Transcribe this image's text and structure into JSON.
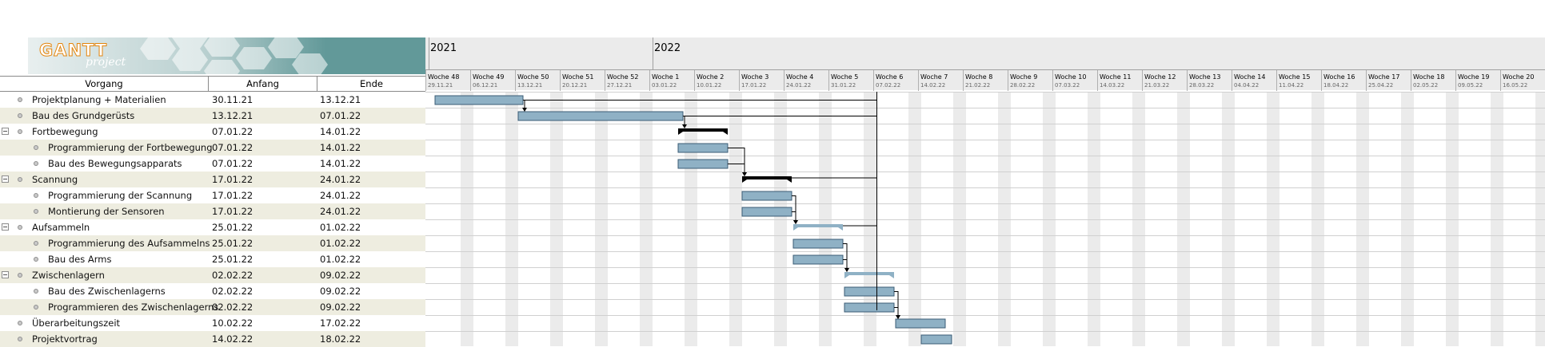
{
  "logo": {
    "brand": "GANTT",
    "sub": "project"
  },
  "table": {
    "columns": {
      "name": "Vorgang",
      "start": "Anfang",
      "end": "Ende"
    }
  },
  "tasks": [
    {
      "name": "Projektplanung + Materialien",
      "start": "30.11.21",
      "end": "13.12.21",
      "level": 0,
      "group": false,
      "startDay": 0,
      "durDays": 14,
      "type": "task"
    },
    {
      "name": "Bau des Grundgerüsts",
      "start": "13.12.21",
      "end": "07.01.22",
      "level": 0,
      "group": false,
      "startDay": 13,
      "durDays": 26,
      "type": "task"
    },
    {
      "name": "Fortbewegung",
      "start": "07.01.22",
      "end": "14.01.22",
      "level": 0,
      "group": true,
      "startDay": 38,
      "durDays": 8,
      "type": "summary-dark"
    },
    {
      "name": "Programmierung der Fortbewegung",
      "start": "07.01.22",
      "end": "14.01.22",
      "level": 1,
      "group": false,
      "startDay": 38,
      "durDays": 8,
      "type": "task"
    },
    {
      "name": "Bau des Bewegungsapparats",
      "start": "07.01.22",
      "end": "14.01.22",
      "level": 1,
      "group": false,
      "startDay": 38,
      "durDays": 8,
      "type": "task"
    },
    {
      "name": "Scannung",
      "start": "17.01.22",
      "end": "24.01.22",
      "level": 0,
      "group": true,
      "startDay": 48,
      "durDays": 8,
      "type": "summary-dark"
    },
    {
      "name": "Programmierung der Scannung",
      "start": "17.01.22",
      "end": "24.01.22",
      "level": 1,
      "group": false,
      "startDay": 48,
      "durDays": 8,
      "type": "task"
    },
    {
      "name": "Montierung der Sensoren",
      "start": "17.01.22",
      "end": "24.01.22",
      "level": 1,
      "group": false,
      "startDay": 48,
      "durDays": 8,
      "type": "task"
    },
    {
      "name": "Aufsammeln",
      "start": "25.01.22",
      "end": "01.02.22",
      "level": 0,
      "group": true,
      "startDay": 56,
      "durDays": 8,
      "type": "summary-light"
    },
    {
      "name": "Programmierung des Aufsammelns",
      "start": "25.01.22",
      "end": "01.02.22",
      "level": 1,
      "group": false,
      "startDay": 56,
      "durDays": 8,
      "type": "task"
    },
    {
      "name": "Bau des Arms",
      "start": "25.01.22",
      "end": "01.02.22",
      "level": 1,
      "group": false,
      "startDay": 56,
      "durDays": 8,
      "type": "task"
    },
    {
      "name": "Zwischenlagern",
      "start": "02.02.22",
      "end": "09.02.22",
      "level": 0,
      "group": true,
      "startDay": 64,
      "durDays": 8,
      "type": "summary-light"
    },
    {
      "name": "Bau des Zwischenlagerns",
      "start": "02.02.22",
      "end": "09.02.22",
      "level": 1,
      "group": false,
      "startDay": 64,
      "durDays": 8,
      "type": "task"
    },
    {
      "name": "Programmieren des Zwischenlagerns",
      "start": "02.02.22",
      "end": "09.02.22",
      "level": 1,
      "group": false,
      "startDay": 64,
      "durDays": 8,
      "type": "task"
    },
    {
      "name": "Überarbeitungszeit",
      "start": "10.02.22",
      "end": "17.02.22",
      "level": 0,
      "group": false,
      "startDay": 72,
      "durDays": 8,
      "type": "task"
    },
    {
      "name": "Projektvortrag",
      "start": "14.02.22",
      "end": "18.02.22",
      "level": 0,
      "group": false,
      "startDay": 76,
      "durDays": 5,
      "type": "task"
    }
  ],
  "timeline": {
    "years": [
      {
        "label": "2021",
        "weekIndex": 0
      },
      {
        "label": "2022",
        "weekIndex": 5
      }
    ],
    "weeks": [
      {
        "name": "Woche 48",
        "date": "29.11.21"
      },
      {
        "name": "Woche 49",
        "date": "06.12.21"
      },
      {
        "name": "Woche 50",
        "date": "13.12.21"
      },
      {
        "name": "Woche 51",
        "date": "20.12.21"
      },
      {
        "name": "Woche 52",
        "date": "27.12.21"
      },
      {
        "name": "Woche 1",
        "date": "03.01.22"
      },
      {
        "name": "Woche 2",
        "date": "10.01.22"
      },
      {
        "name": "Woche 3",
        "date": "17.01.22"
      },
      {
        "name": "Woche 4",
        "date": "24.01.22"
      },
      {
        "name": "Woche 5",
        "date": "31.01.22"
      },
      {
        "name": "Woche 6",
        "date": "07.02.22"
      },
      {
        "name": "Woche 7",
        "date": "14.02.22"
      },
      {
        "name": "Woche 8",
        "date": "21.02.22"
      },
      {
        "name": "Woche 9",
        "date": "28.02.22"
      },
      {
        "name": "Woche 10",
        "date": "07.03.22"
      },
      {
        "name": "Woche 11",
        "date": "14.03.22"
      },
      {
        "name": "Woche 12",
        "date": "21.03.22"
      },
      {
        "name": "Woche 13",
        "date": "28.03.22"
      },
      {
        "name": "Woche 14",
        "date": "04.04.22"
      },
      {
        "name": "Woche 15",
        "date": "11.04.22"
      },
      {
        "name": "Woche 16",
        "date": "18.04.22"
      },
      {
        "name": "Woche 17",
        "date": "25.04.22"
      },
      {
        "name": "Woche 18",
        "date": "02.05.22"
      },
      {
        "name": "Woche 19",
        "date": "09.05.22"
      },
      {
        "name": "Woche 20",
        "date": "16.05.22"
      }
    ],
    "dependencies": [
      [
        0,
        1
      ],
      [
        1,
        2
      ],
      [
        3,
        5
      ],
      [
        4,
        5
      ],
      [
        6,
        8
      ],
      [
        7,
        8
      ],
      [
        9,
        11
      ],
      [
        10,
        11
      ],
      [
        12,
        14
      ],
      [
        13,
        14
      ]
    ],
    "todayDay": 69
  },
  "colors": {
    "taskBar": "#8fb1c5",
    "taskBorder": "#3b5c75",
    "summaryDark": "#000000",
    "summaryLight": "#8fb1c5",
    "weekend": "#ebebeb",
    "rowAlt": "#eeede0",
    "grid": "#d0d0d0",
    "logoBg": "#629999"
  }
}
